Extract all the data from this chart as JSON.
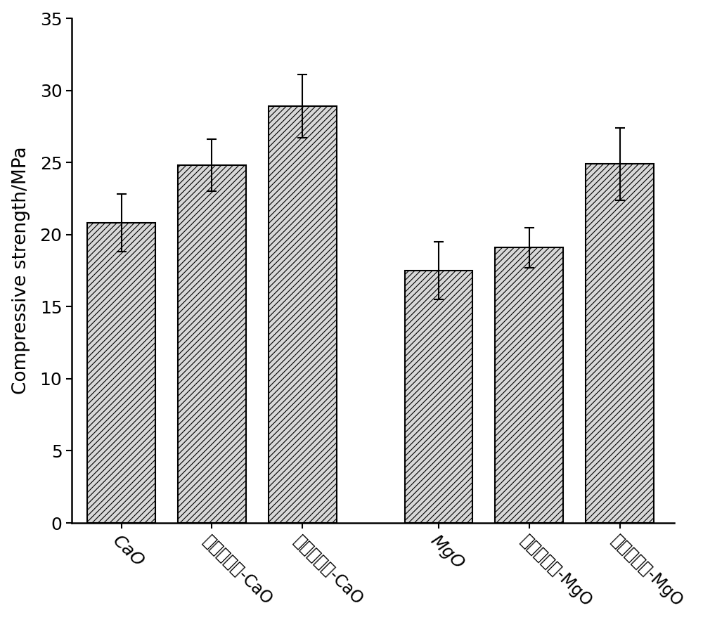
{
  "categories": [
    "CaO",
    "单一微生物-CaO",
    "复合微生物-CaO",
    "MgO",
    "单一微生物-MgO",
    "复合微生物-MgO"
  ],
  "values": [
    20.8,
    24.8,
    28.9,
    17.5,
    19.1,
    24.9
  ],
  "errors": [
    2.0,
    1.8,
    2.2,
    2.0,
    1.4,
    2.5
  ],
  "bar_facecolor": "#d8d8d8",
  "bar_edgecolor": "#000000",
  "hatch": "////",
  "hatch_linewidth": 0.8,
  "ylabel": "Compressive strength/MPa",
  "ylim": [
    0,
    35
  ],
  "yticks": [
    0,
    5,
    10,
    15,
    20,
    25,
    30,
    35
  ],
  "bar_width": 0.75,
  "x_positions": [
    0,
    1,
    2,
    3.5,
    4.5,
    5.5
  ],
  "tick_label_fontsize": 17,
  "ylabel_fontsize": 19,
  "ytick_fontsize": 18,
  "tick_label_rotation": -45,
  "figsize": [
    10.0,
    8.85
  ],
  "dpi": 100,
  "xlim": [
    -0.55,
    6.1
  ],
  "spine_linewidth": 1.8,
  "errorbar_linewidth": 1.5,
  "errorbar_capsize": 5,
  "errorbar_capthick": 1.5
}
